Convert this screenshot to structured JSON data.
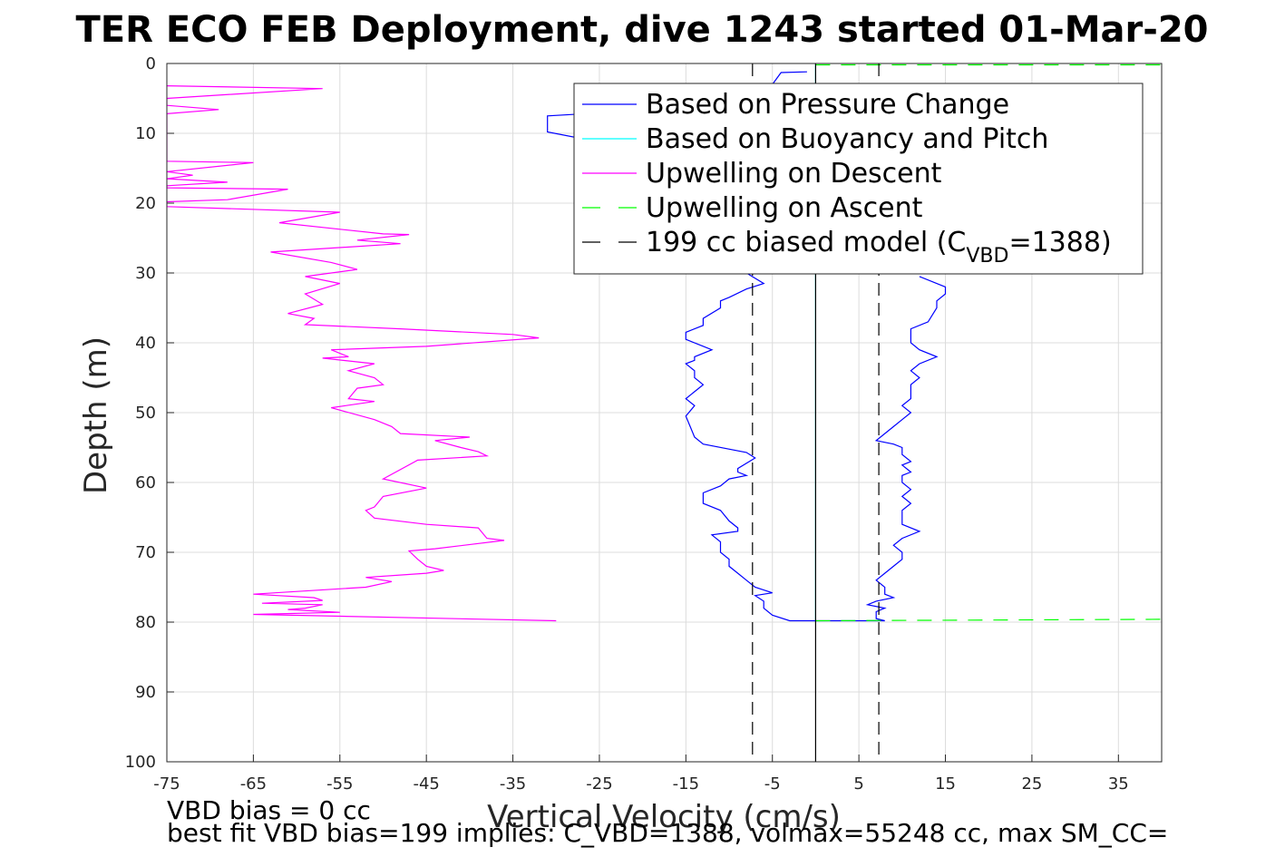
{
  "chart_data": {
    "type": "line",
    "title": "TER ECO FEB Deployment, dive 1243 started 01-Mar-20",
    "xlabel": "Vertical Velocity (cm/s)",
    "ylabel": "Depth (m)",
    "xlim": [
      -75,
      40
    ],
    "ylim": [
      0,
      100
    ],
    "y_reversed": true,
    "grid": true,
    "x_ticks": [
      -75,
      -65,
      -55,
      -45,
      -35,
      -25,
      -15,
      -5,
      5,
      15,
      25,
      35
    ],
    "y_ticks": [
      0,
      10,
      20,
      30,
      40,
      50,
      60,
      70,
      80,
      90,
      100
    ],
    "legend_position": "top-right",
    "legend": [
      {
        "label": "Based on Pressure Change",
        "color": "#0000ff",
        "style": "solid"
      },
      {
        "label": "Based on Buoyancy and Pitch",
        "color": "#00ffff",
        "style": "solid"
      },
      {
        "label": "Upwelling on Descent",
        "color": "#ff00ff",
        "style": "solid"
      },
      {
        "label": "Upwelling on Ascent",
        "color": "#00ff00",
        "style": "dashed"
      },
      {
        "label": "199 cc biased model (C",
        "sub": "VBD",
        "suffix": "=1388)",
        "color": "#000000",
        "style": "dashed"
      }
    ],
    "series": [
      {
        "name": "Upwelling on Descent",
        "color": "#ff00ff",
        "style": "solid",
        "points": [
          [
            -75,
            3.2
          ],
          [
            -57,
            3.6
          ],
          [
            -75,
            5
          ],
          [
            -75,
            6
          ],
          [
            -69,
            6.6
          ],
          [
            -75,
            7.2
          ],
          [
            -75,
            14
          ],
          [
            -65,
            14.2
          ],
          [
            -75,
            15.5
          ],
          [
            -72,
            16
          ],
          [
            -75,
            16.5
          ],
          [
            -68,
            17
          ],
          [
            -75,
            17.5
          ],
          [
            -75,
            17.8
          ],
          [
            -61,
            18
          ],
          [
            -68,
            19.5
          ],
          [
            -75,
            19.8
          ],
          [
            -75,
            20.5
          ],
          [
            -55,
            21.3
          ],
          [
            -62,
            22.8
          ],
          [
            -50,
            24.4
          ],
          [
            -47,
            24.5
          ],
          [
            -53,
            25.3
          ],
          [
            -48,
            25.8
          ],
          [
            -63,
            27
          ],
          [
            -56,
            28.5
          ],
          [
            -53,
            29.5
          ],
          [
            -59,
            30.5
          ],
          [
            -55,
            31.5
          ],
          [
            -59,
            33
          ],
          [
            -57,
            34.5
          ],
          [
            -61,
            35.8
          ],
          [
            -58,
            36.5
          ],
          [
            -59,
            37.4
          ],
          [
            -48,
            38
          ],
          [
            -35,
            38.8
          ],
          [
            -32,
            39.3
          ],
          [
            -45,
            40.5
          ],
          [
            -56,
            41
          ],
          [
            -54,
            42
          ],
          [
            -57,
            42.2
          ],
          [
            -51,
            43
          ],
          [
            -54,
            44
          ],
          [
            -51,
            45
          ],
          [
            -50,
            46
          ],
          [
            -53,
            46.5
          ],
          [
            -54,
            48
          ],
          [
            -51,
            48.4
          ],
          [
            -56,
            49.3
          ],
          [
            -51,
            51
          ],
          [
            -49,
            52
          ],
          [
            -48,
            53
          ],
          [
            -40,
            53.5
          ],
          [
            -44,
            54
          ],
          [
            -41,
            55
          ],
          [
            -39,
            55.6
          ],
          [
            -38,
            56.2
          ],
          [
            -46,
            56.8
          ],
          [
            -50,
            59.5
          ],
          [
            -45,
            60.8
          ],
          [
            -50,
            62
          ],
          [
            -51,
            63.5
          ],
          [
            -52,
            64
          ],
          [
            -51,
            65.1
          ],
          [
            -45,
            66
          ],
          [
            -39,
            66.5
          ],
          [
            -38,
            68
          ],
          [
            -36,
            68.3
          ],
          [
            -44,
            69.5
          ],
          [
            -47,
            69.8
          ],
          [
            -46,
            71
          ],
          [
            -45,
            72
          ],
          [
            -43,
            72.6
          ],
          [
            -45,
            73
          ],
          [
            -52,
            73.6
          ],
          [
            -49,
            74.2
          ],
          [
            -52,
            75
          ],
          [
            -65,
            76
          ],
          [
            -58,
            76.5
          ],
          [
            -57,
            76.9
          ],
          [
            -64,
            77.3
          ],
          [
            -57,
            77.5
          ],
          [
            -59,
            78
          ],
          [
            -61,
            78.2
          ],
          [
            -55,
            78.6
          ],
          [
            -65,
            78.9
          ],
          [
            -30,
            79.8
          ]
        ]
      },
      {
        "name": "Based on Pressure Change",
        "color": "#0000ff",
        "style": "solid",
        "points": [
          [
            -1,
            1.2
          ],
          [
            -4,
            1.3
          ],
          [
            -5,
            3
          ],
          [
            -4,
            4.5
          ],
          [
            -6,
            5.5
          ],
          [
            -10,
            6
          ],
          [
            -31,
            7.5
          ],
          [
            -31,
            9.8
          ],
          [
            -26,
            11
          ]
        ]
      },
      {
        "name": "Based on Pressure Change",
        "color": "#0000ff",
        "style": "solid",
        "points": [
          [
            -8,
            30
          ],
          [
            -6,
            31.5
          ],
          [
            -8,
            32.3
          ],
          [
            -10,
            33.5
          ],
          [
            -11,
            34
          ],
          [
            -11,
            35
          ],
          [
            -13,
            36.5
          ],
          [
            -13,
            37.5
          ],
          [
            -15,
            38.5
          ],
          [
            -15,
            39.5
          ],
          [
            -12,
            41
          ],
          [
            -14,
            42
          ],
          [
            -14,
            42.5
          ],
          [
            -15,
            43
          ],
          [
            -14,
            44
          ],
          [
            -14,
            45
          ],
          [
            -13,
            46
          ],
          [
            -14,
            47
          ],
          [
            -15,
            48
          ],
          [
            -14,
            49
          ],
          [
            -15,
            50.5
          ],
          [
            -14.5,
            52
          ],
          [
            -14,
            53.5
          ],
          [
            -13,
            54.5
          ],
          [
            -8,
            55.7
          ],
          [
            -7,
            56.5
          ],
          [
            -9,
            58
          ],
          [
            -9,
            58.5
          ],
          [
            -8,
            59
          ],
          [
            -10,
            59.5
          ],
          [
            -11,
            60.5
          ],
          [
            -13,
            61.5
          ],
          [
            -13,
            63
          ],
          [
            -11,
            64
          ],
          [
            -10,
            65.5
          ],
          [
            -9,
            66.5
          ],
          [
            -9,
            67
          ],
          [
            -12,
            67.5
          ],
          [
            -11,
            68.5
          ],
          [
            -11,
            70
          ],
          [
            -10,
            71
          ],
          [
            -10,
            72
          ],
          [
            -9,
            73
          ],
          [
            -8,
            74
          ],
          [
            -7,
            75
          ],
          [
            -5,
            75.8
          ],
          [
            -7,
            76.2
          ],
          [
            -6,
            77
          ],
          [
            -6,
            78
          ],
          [
            -5,
            79
          ],
          [
            -3,
            79.8
          ],
          [
            0,
            79.8
          ]
        ]
      },
      {
        "name": "Based on Pressure Change",
        "color": "#0000ff",
        "style": "solid",
        "points": [
          [
            12,
            30.5
          ],
          [
            15,
            32
          ],
          [
            15,
            33
          ],
          [
            14,
            34
          ],
          [
            14,
            35
          ],
          [
            13,
            37
          ],
          [
            11,
            38
          ],
          [
            11,
            40
          ],
          [
            12,
            41
          ],
          [
            14,
            42
          ],
          [
            12,
            43
          ],
          [
            11,
            44
          ],
          [
            12,
            45
          ],
          [
            11,
            46
          ],
          [
            11,
            47
          ],
          [
            11,
            48
          ],
          [
            10,
            49
          ],
          [
            11,
            50
          ],
          [
            10,
            51
          ],
          [
            9,
            52
          ],
          [
            8,
            53
          ],
          [
            7,
            54
          ],
          [
            9,
            54.5
          ],
          [
            10,
            55
          ],
          [
            10,
            56
          ],
          [
            11,
            57
          ],
          [
            10,
            57.5
          ],
          [
            11,
            58.5
          ],
          [
            10,
            59
          ],
          [
            10,
            60
          ],
          [
            11,
            61
          ],
          [
            10,
            62
          ],
          [
            11,
            63
          ],
          [
            10,
            64
          ],
          [
            10,
            65
          ],
          [
            10,
            66
          ],
          [
            12,
            67
          ],
          [
            10,
            68
          ],
          [
            9,
            69
          ],
          [
            10,
            70
          ],
          [
            10,
            71
          ],
          [
            9,
            72
          ],
          [
            8,
            73
          ],
          [
            7,
            74
          ],
          [
            8,
            75
          ],
          [
            8,
            76
          ],
          [
            9,
            76.5
          ],
          [
            7,
            77
          ],
          [
            6,
            77.5
          ],
          [
            8,
            78
          ],
          [
            7,
            78.5
          ],
          [
            7,
            79.5
          ],
          [
            8,
            79.8
          ],
          [
            0,
            79.8
          ]
        ]
      },
      {
        "name": "Based on Buoyancy and Pitch",
        "color": "#00ffff",
        "style": "solid",
        "points": [
          [
            0,
            0
          ],
          [
            0,
            80
          ]
        ]
      },
      {
        "name": "Upwelling on Ascent",
        "color": "#00ff00",
        "style": "dashed",
        "points": [
          [
            0,
            0.2
          ],
          [
            40,
            0.2
          ]
        ]
      },
      {
        "name": "Upwelling on Ascent",
        "color": "#00ff00",
        "style": "dashed",
        "points": [
          [
            0,
            79.8
          ],
          [
            40,
            79.6
          ]
        ]
      },
      {
        "name": "199 cc biased model",
        "color": "#000000",
        "style": "dashed",
        "points": [
          [
            -7.3,
            0
          ],
          [
            -7.3,
            100
          ]
        ]
      },
      {
        "name": "199 cc biased model",
        "color": "#000000",
        "style": "dashed",
        "points": [
          [
            7.3,
            0
          ],
          [
            7.3,
            100
          ]
        ]
      },
      {
        "name": "zero line",
        "color": "#000000",
        "style": "solid",
        "points": [
          [
            0,
            0
          ],
          [
            0,
            100
          ]
        ]
      }
    ],
    "annotations": [
      "VBD bias = 0 cc",
      "best fit VBD bias=199 implies: C_VBD=1388, volmax=55248 cc, max SM_CC="
    ]
  }
}
